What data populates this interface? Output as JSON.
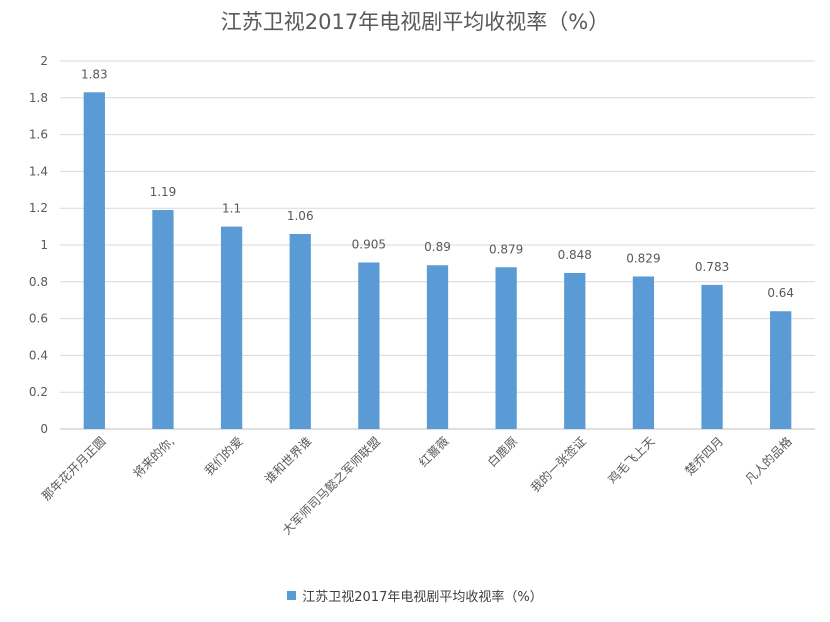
{
  "chart_data": {
    "type": "bar",
    "title": "江苏卫视2017年电视剧平均收视率（%）",
    "categories": [
      "那年花开月正圆",
      "将来的你,",
      "我们的爱",
      "谁和世界谁",
      "大军师司马懿之军师联盟",
      "红蔷薇",
      "白鹿原",
      "我的一张签证",
      "鸡毛飞上天",
      "楚乔四月",
      "凡人的品格"
    ],
    "series": [
      {
        "name": "江苏卫视2017年电视剧平均收视率（%）",
        "values": [
          1.83,
          1.19,
          1.1,
          1.06,
          0.905,
          0.89,
          0.879,
          0.848,
          0.829,
          0.783,
          0.64
        ]
      }
    ],
    "data_labels": [
      "1.83",
      "1.19",
      "1.1",
      "1.06",
      "0.905",
      "0.89",
      "0.879",
      "0.848",
      "0.829",
      "0.783",
      "0.64"
    ],
    "ylim": [
      0,
      2
    ],
    "yticks": [
      0,
      0.2,
      0.4,
      0.6,
      0.8,
      1,
      1.2,
      1.4,
      1.6,
      1.8,
      2
    ],
    "ytick_labels": [
      "0",
      "0.2",
      "0.4",
      "0.6",
      "0.8",
      "1",
      "1.2",
      "1.4",
      "1.6",
      "1.8",
      "2"
    ],
    "grid": true,
    "legend_position": "bottom",
    "colors": {
      "bar": "#5b9bd5",
      "grid": "#d9d9d9",
      "text": "#595959"
    }
  }
}
